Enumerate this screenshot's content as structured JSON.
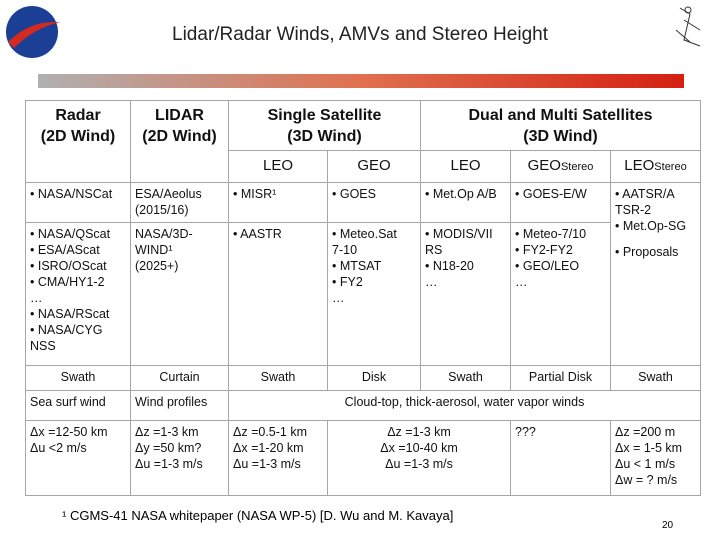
{
  "header": {
    "title": "Lidar/Radar Winds, AMVs and Stereo Height"
  },
  "table": {
    "headers": [
      [
        "Radar",
        "(2D Wind)"
      ],
      [
        "LIDAR",
        "(2D Wind)"
      ],
      [
        "Single Satellite",
        "(3D Wind)"
      ],
      [
        "Dual and Multi Satellites",
        "(3D Wind)"
      ]
    ],
    "subheaders": [
      {
        "text": "LEO"
      },
      {
        "text": "GEO"
      },
      {
        "text": "LEO"
      },
      {
        "text": "GEO",
        "sub": "Stereo"
      },
      {
        "text": "LEO",
        "sub": "Stereo"
      }
    ],
    "rows": [
      [
        [
          "• NASA/NSCat"
        ],
        [
          "ESA/Aeolus",
          "(2015/16)"
        ],
        [
          "• MISR¹"
        ],
        [
          "• GOES"
        ],
        [
          "• Met.Op A/B"
        ],
        [
          "• GOES-E/W"
        ],
        [
          "• AATSR/A",
          "TSR-2",
          "• Met.Op-SG",
          "• Proposals"
        ]
      ],
      [
        [
          "• NASA/QScat",
          "• ESA/AScat",
          "• ISRO/OScat",
          "• CMA/HY1-2",
          "…",
          "• NASA/RScat",
          "• NASA/CYG",
          "NSS"
        ],
        [
          "NASA/3D-",
          "WIND¹",
          "(2025+)"
        ],
        [
          "• AASTR"
        ],
        [
          "• Meteo.Sat",
          "7-10",
          "• MTSAT",
          "• FY2",
          "…"
        ],
        [
          "• MODIS/VII",
          "RS",
          "• N18-20",
          "…"
        ],
        [
          "• Meteo-7/10",
          "• FY2-FY2",
          "• GEO/LEO",
          "…"
        ]
      ],
      [
        [
          "Swath"
        ],
        [
          "Curtain"
        ],
        [
          "Swath"
        ],
        [
          "Disk"
        ],
        [
          "Swath"
        ],
        [
          "Partial Disk"
        ],
        [
          "Swath"
        ]
      ],
      [
        [
          "Sea surf wind"
        ],
        [
          "Wind profiles"
        ],
        [
          "Cloud-top, thick-aerosol, water vapor winds"
        ]
      ],
      [
        [
          "Δx =12-50 km",
          "Δu <2 m/s"
        ],
        [
          "Δz =1-3 km",
          "Δy =50 km?",
          "Δu =1-3 m/s"
        ],
        [
          "Δz =0.5-1 km",
          "Δx =1-20 km",
          "Δu =1-3 m/s"
        ],
        [
          "Δz =1-3 km",
          "Δx =10-40 km",
          "Δu =1-3 m/s"
        ],
        [
          "???"
        ],
        [
          "Δz =200 m",
          "Δx = 1-5 km",
          "Δu < 1 m/s",
          "Δw = ? m/s"
        ]
      ]
    ]
  },
  "footnote": "¹ CGMS-41 NASA whitepaper (NASA WP-5) [D. Wu and M. Kavaya]",
  "page_number": "20"
}
